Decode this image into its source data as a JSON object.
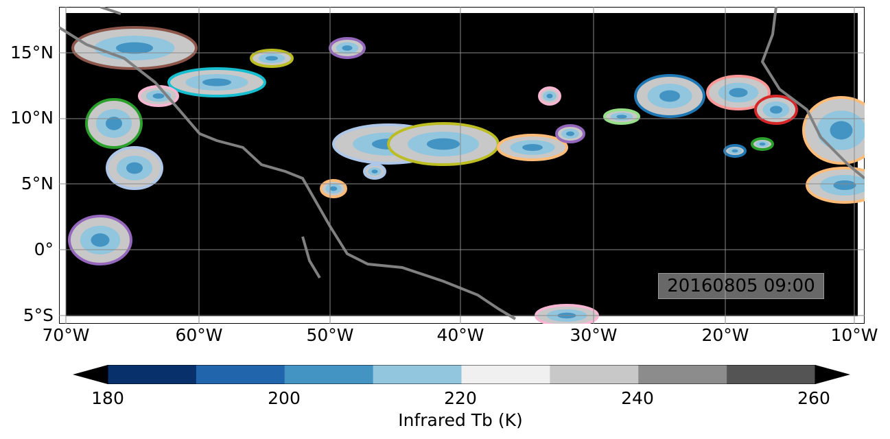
{
  "map": {
    "lat_labels": [
      "15°N",
      "10°N",
      "5°N",
      "0°",
      "5°S"
    ],
    "lon_labels": [
      "70°W",
      "60°W",
      "50°W",
      "40°W",
      "30°W",
      "20°W",
      "10°W"
    ],
    "lat_extent": [
      -5.5,
      18.5
    ],
    "lon_extent": [
      -70.5,
      -10
    ],
    "gridlines": true,
    "background": "#000000",
    "coastline_color": "#808080",
    "timestamp": "20160805 09:00"
  },
  "colorbar": {
    "title": "Infrared Tb (K)",
    "tick_labels": [
      "180",
      "200",
      "220",
      "240",
      "260"
    ],
    "levels": [
      180,
      190,
      200,
      210,
      220,
      230,
      240,
      250,
      260
    ],
    "colors": [
      "#08306b",
      "#2166ac",
      "#4393c3",
      "#92c5de",
      "#f0f0f0",
      "#c8c8c8",
      "#8c8c8c",
      "#545454"
    ],
    "extend": "both",
    "min_color": "#000000",
    "max_color": "#000000"
  },
  "track_colors": [
    "#1f77b4",
    "#ff7f0e",
    "#2ca02c",
    "#d62728",
    "#9467bd",
    "#8c564b",
    "#e377c2",
    "#bcbd22",
    "#17becf",
    "#aec7e8",
    "#ffbb78",
    "#98df8a",
    "#ff9896",
    "#c5b0d5",
    "#c49c94",
    "#f7b6d2",
    "#dbdb8d",
    "#9edae5"
  ]
}
